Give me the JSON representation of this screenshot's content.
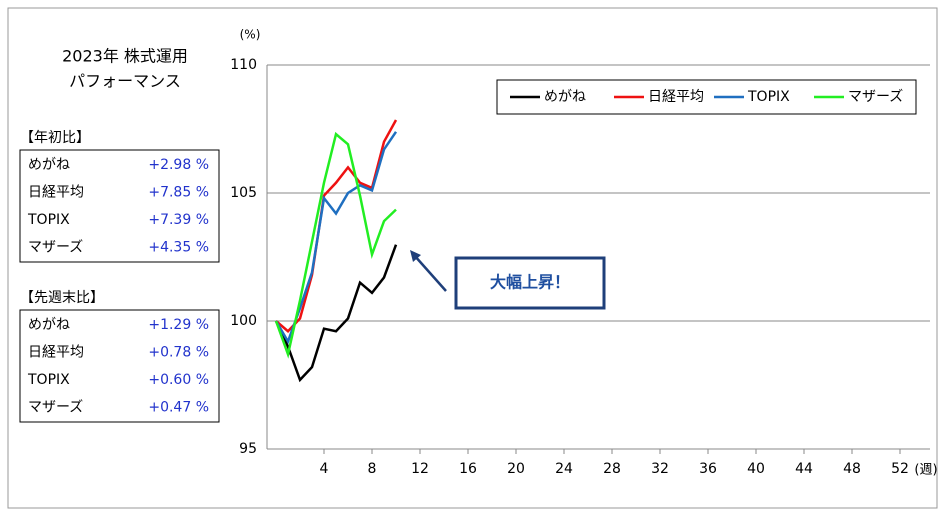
{
  "chart_data": {
    "type": "line",
    "title": "2023年  株式運用",
    "subtitle": "パフォーマンス",
    "y_label": "(%)",
    "x_label": "(週)",
    "x": [
      0,
      1,
      2,
      3,
      4,
      5,
      6,
      7,
      8,
      9,
      10
    ],
    "series": [
      {
        "name": "めがね",
        "color": "#000000",
        "values": [
          100,
          99.0,
          97.7,
          98.2,
          99.7,
          99.6,
          100.1,
          101.5,
          101.1,
          101.7,
          102.98
        ]
      },
      {
        "name": "日経平均",
        "color": "#ee1111",
        "values": [
          100,
          99.6,
          100.1,
          101.8,
          104.9,
          105.4,
          106.0,
          105.4,
          105.2,
          107.0,
          107.85
        ]
      },
      {
        "name": "TOPIX",
        "color": "#1f6fc0",
        "values": [
          100,
          99.2,
          100.5,
          101.9,
          104.8,
          104.2,
          105.0,
          105.3,
          105.1,
          106.7,
          107.39
        ]
      },
      {
        "name": "マザーズ",
        "color": "#22ee22",
        "values": [
          100,
          98.7,
          100.8,
          103.1,
          105.4,
          107.3,
          106.9,
          104.9,
          102.6,
          103.9,
          104.35
        ]
      }
    ],
    "xlim": [
      -0.75,
      54.5
    ],
    "xticks": [
      4,
      8,
      12,
      16,
      20,
      24,
      28,
      32,
      36,
      40,
      44,
      48,
      52
    ],
    "ylim": [
      95,
      110
    ],
    "yticks": [
      95,
      100,
      105,
      110
    ],
    "grid": true,
    "legend": "top-right",
    "annotation": "大幅上昇！"
  },
  "ytd_table": {
    "title": "【年初比】",
    "rows": [
      [
        "めがね",
        "+2.98 %"
      ],
      [
        "日経平均",
        "+7.85 %"
      ],
      [
        "TOPIX",
        "+7.39 %"
      ],
      [
        "マザーズ",
        "+4.35 %"
      ]
    ]
  },
  "weekly_table": {
    "title": "【先週末比】",
    "rows": [
      [
        "めがね",
        "+1.29 %"
      ],
      [
        "日経平均",
        "+0.78 %"
      ],
      [
        "TOPIX",
        "+0.60 %"
      ],
      [
        "マザーズ",
        "+0.47 %"
      ]
    ]
  }
}
